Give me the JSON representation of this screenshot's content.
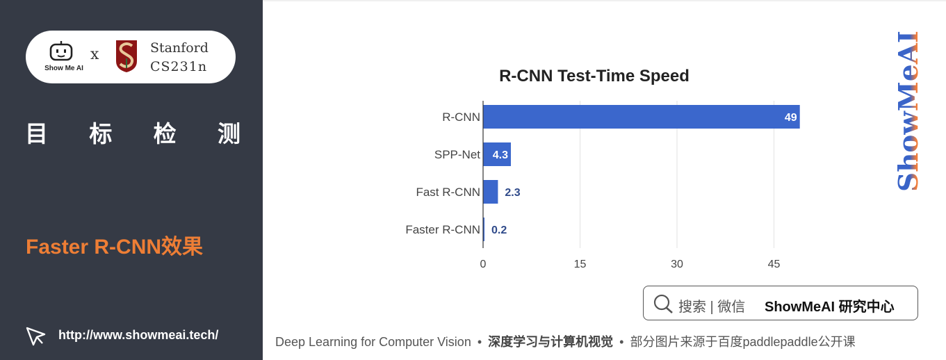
{
  "sidebar": {
    "logo": {
      "brand_label": "Show Me AI",
      "x_mark": "x",
      "partner_name": "Stanford",
      "partner_course": "CS231n"
    },
    "section_title_chars": [
      "目",
      "标",
      "检",
      "测"
    ],
    "slide_subtitle": "Faster R-CNN效果",
    "site_url": "http://www.showmeai.tech/"
  },
  "colors": {
    "sidebar_bg": "#353a45",
    "accent_orange": "#ee7e35",
    "bar_blue": "#3b67cc",
    "watermark_blue": "#3a64c8",
    "watermark_orange": "#f07d3c"
  },
  "watermark": {
    "text": "ShowMeAI"
  },
  "search_box": {
    "icon": "search-icon",
    "hint": "搜索 | 微信",
    "brand": "ShowMeAI 研究中心"
  },
  "footer": {
    "part1": "Deep Learning for Computer Vision",
    "part2": "深度学习与计算机视觉",
    "part3": "部分图片来源于百度paddlepaddle公开课",
    "separator": "•"
  },
  "chart_data": {
    "type": "bar",
    "orientation": "horizontal",
    "title": "R-CNN Test-Time Speed",
    "categories": [
      "R-CNN",
      "SPP-Net",
      "Fast R-CNN",
      "Faster R-CNN"
    ],
    "values": [
      49,
      4.3,
      2.3,
      0.2
    ],
    "value_labels": [
      "49",
      "4.3",
      "2.3",
      "0.2"
    ],
    "xlim": [
      0,
      50
    ],
    "xticks": [
      "0",
      "15",
      "30",
      "45"
    ],
    "xtick_values": [
      0,
      15,
      30,
      45
    ],
    "grid": true,
    "xlabel": "",
    "ylabel": ""
  }
}
